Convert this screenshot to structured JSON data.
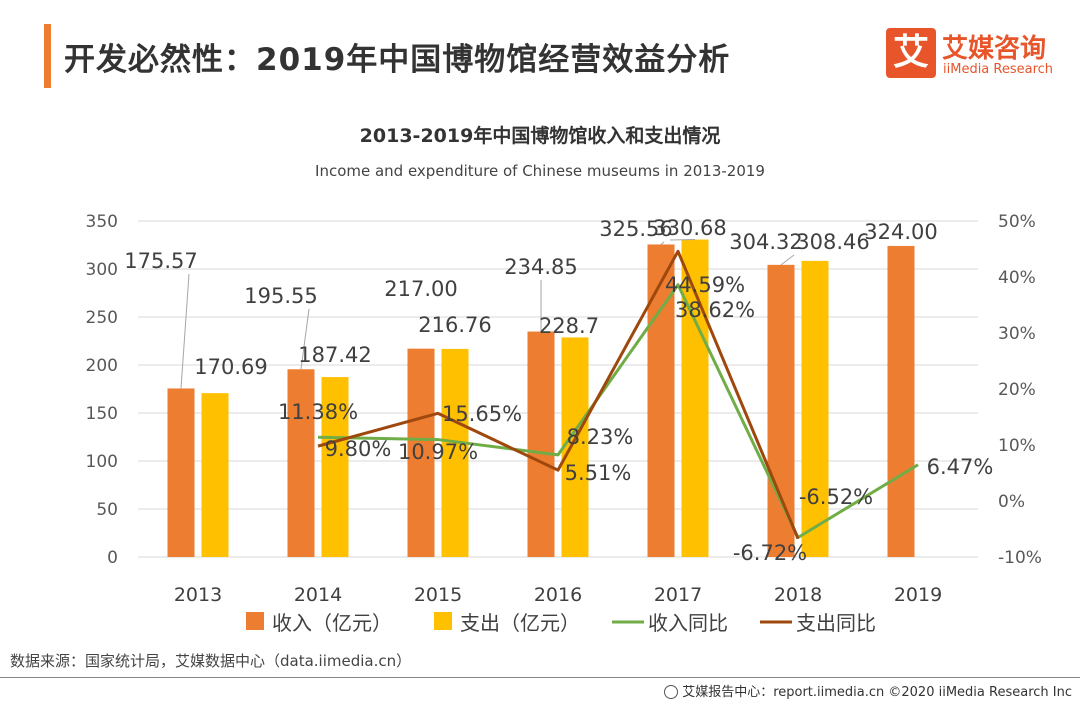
{
  "header": {
    "title": "开发必然性：2019年中国博物馆经营效益分析",
    "logo_cn": "艾媒咨询",
    "logo_en": "iiMedia Research",
    "logo_mark": "艾"
  },
  "chart_data": {
    "type": "bar",
    "title": "2013-2019年中国博物馆收入和支出情况",
    "subtitle": "Income and expenditure of Chinese museums in 2013-2019",
    "categories": [
      "2013",
      "2014",
      "2015",
      "2016",
      "2017",
      "2018",
      "2019"
    ],
    "y_left": {
      "min": 0,
      "max": 350,
      "ticks": [
        "0",
        "50",
        "100",
        "150",
        "200",
        "250",
        "300",
        "350"
      ]
    },
    "y_right": {
      "min": -10,
      "max": 50,
      "ticks": [
        "-10%",
        "0%",
        "10%",
        "20%",
        "30%",
        "40%",
        "50%"
      ]
    },
    "series": [
      {
        "name": "收入（亿元）",
        "kind": "bar",
        "color": "#ed7d31",
        "values": [
          175.57,
          195.55,
          217.0,
          234.85,
          325.56,
          304.32,
          324.0
        ],
        "labels": [
          "175.57",
          "195.55",
          "217.00",
          "234.85",
          "325.56",
          "304.32",
          "324.00"
        ]
      },
      {
        "name": "支出（亿元）",
        "kind": "bar",
        "color": "#ffc000",
        "values": [
          170.69,
          187.42,
          216.76,
          228.7,
          330.68,
          308.46,
          null
        ],
        "labels": [
          "170.69",
          "187.42",
          "216.76",
          "228.7",
          "330.68",
          "308.46",
          ""
        ]
      },
      {
        "name": "收入同比",
        "kind": "line",
        "color": "#70ad47",
        "values": [
          null,
          11.38,
          10.97,
          8.23,
          38.62,
          -6.52,
          6.47
        ],
        "labels": [
          "",
          "11.38%",
          "10.97%",
          "8.23%",
          "38.62%",
          "-6.52%",
          "6.47%"
        ]
      },
      {
        "name": "支出同比",
        "kind": "line",
        "color": "#9e480e",
        "values": [
          null,
          9.8,
          15.65,
          5.51,
          44.59,
          -6.72,
          null
        ],
        "labels": [
          "",
          "9.80%",
          "15.65%",
          "5.51%",
          "44.59%",
          "-6.72%",
          ""
        ]
      }
    ],
    "legend": "bottom"
  },
  "source": "数据来源：国家统计局，艾媒数据中心（data.iimedia.cn）",
  "footer": "艾媒报告中心：report.iimedia.cn ©2020 iiMedia Research Inc"
}
